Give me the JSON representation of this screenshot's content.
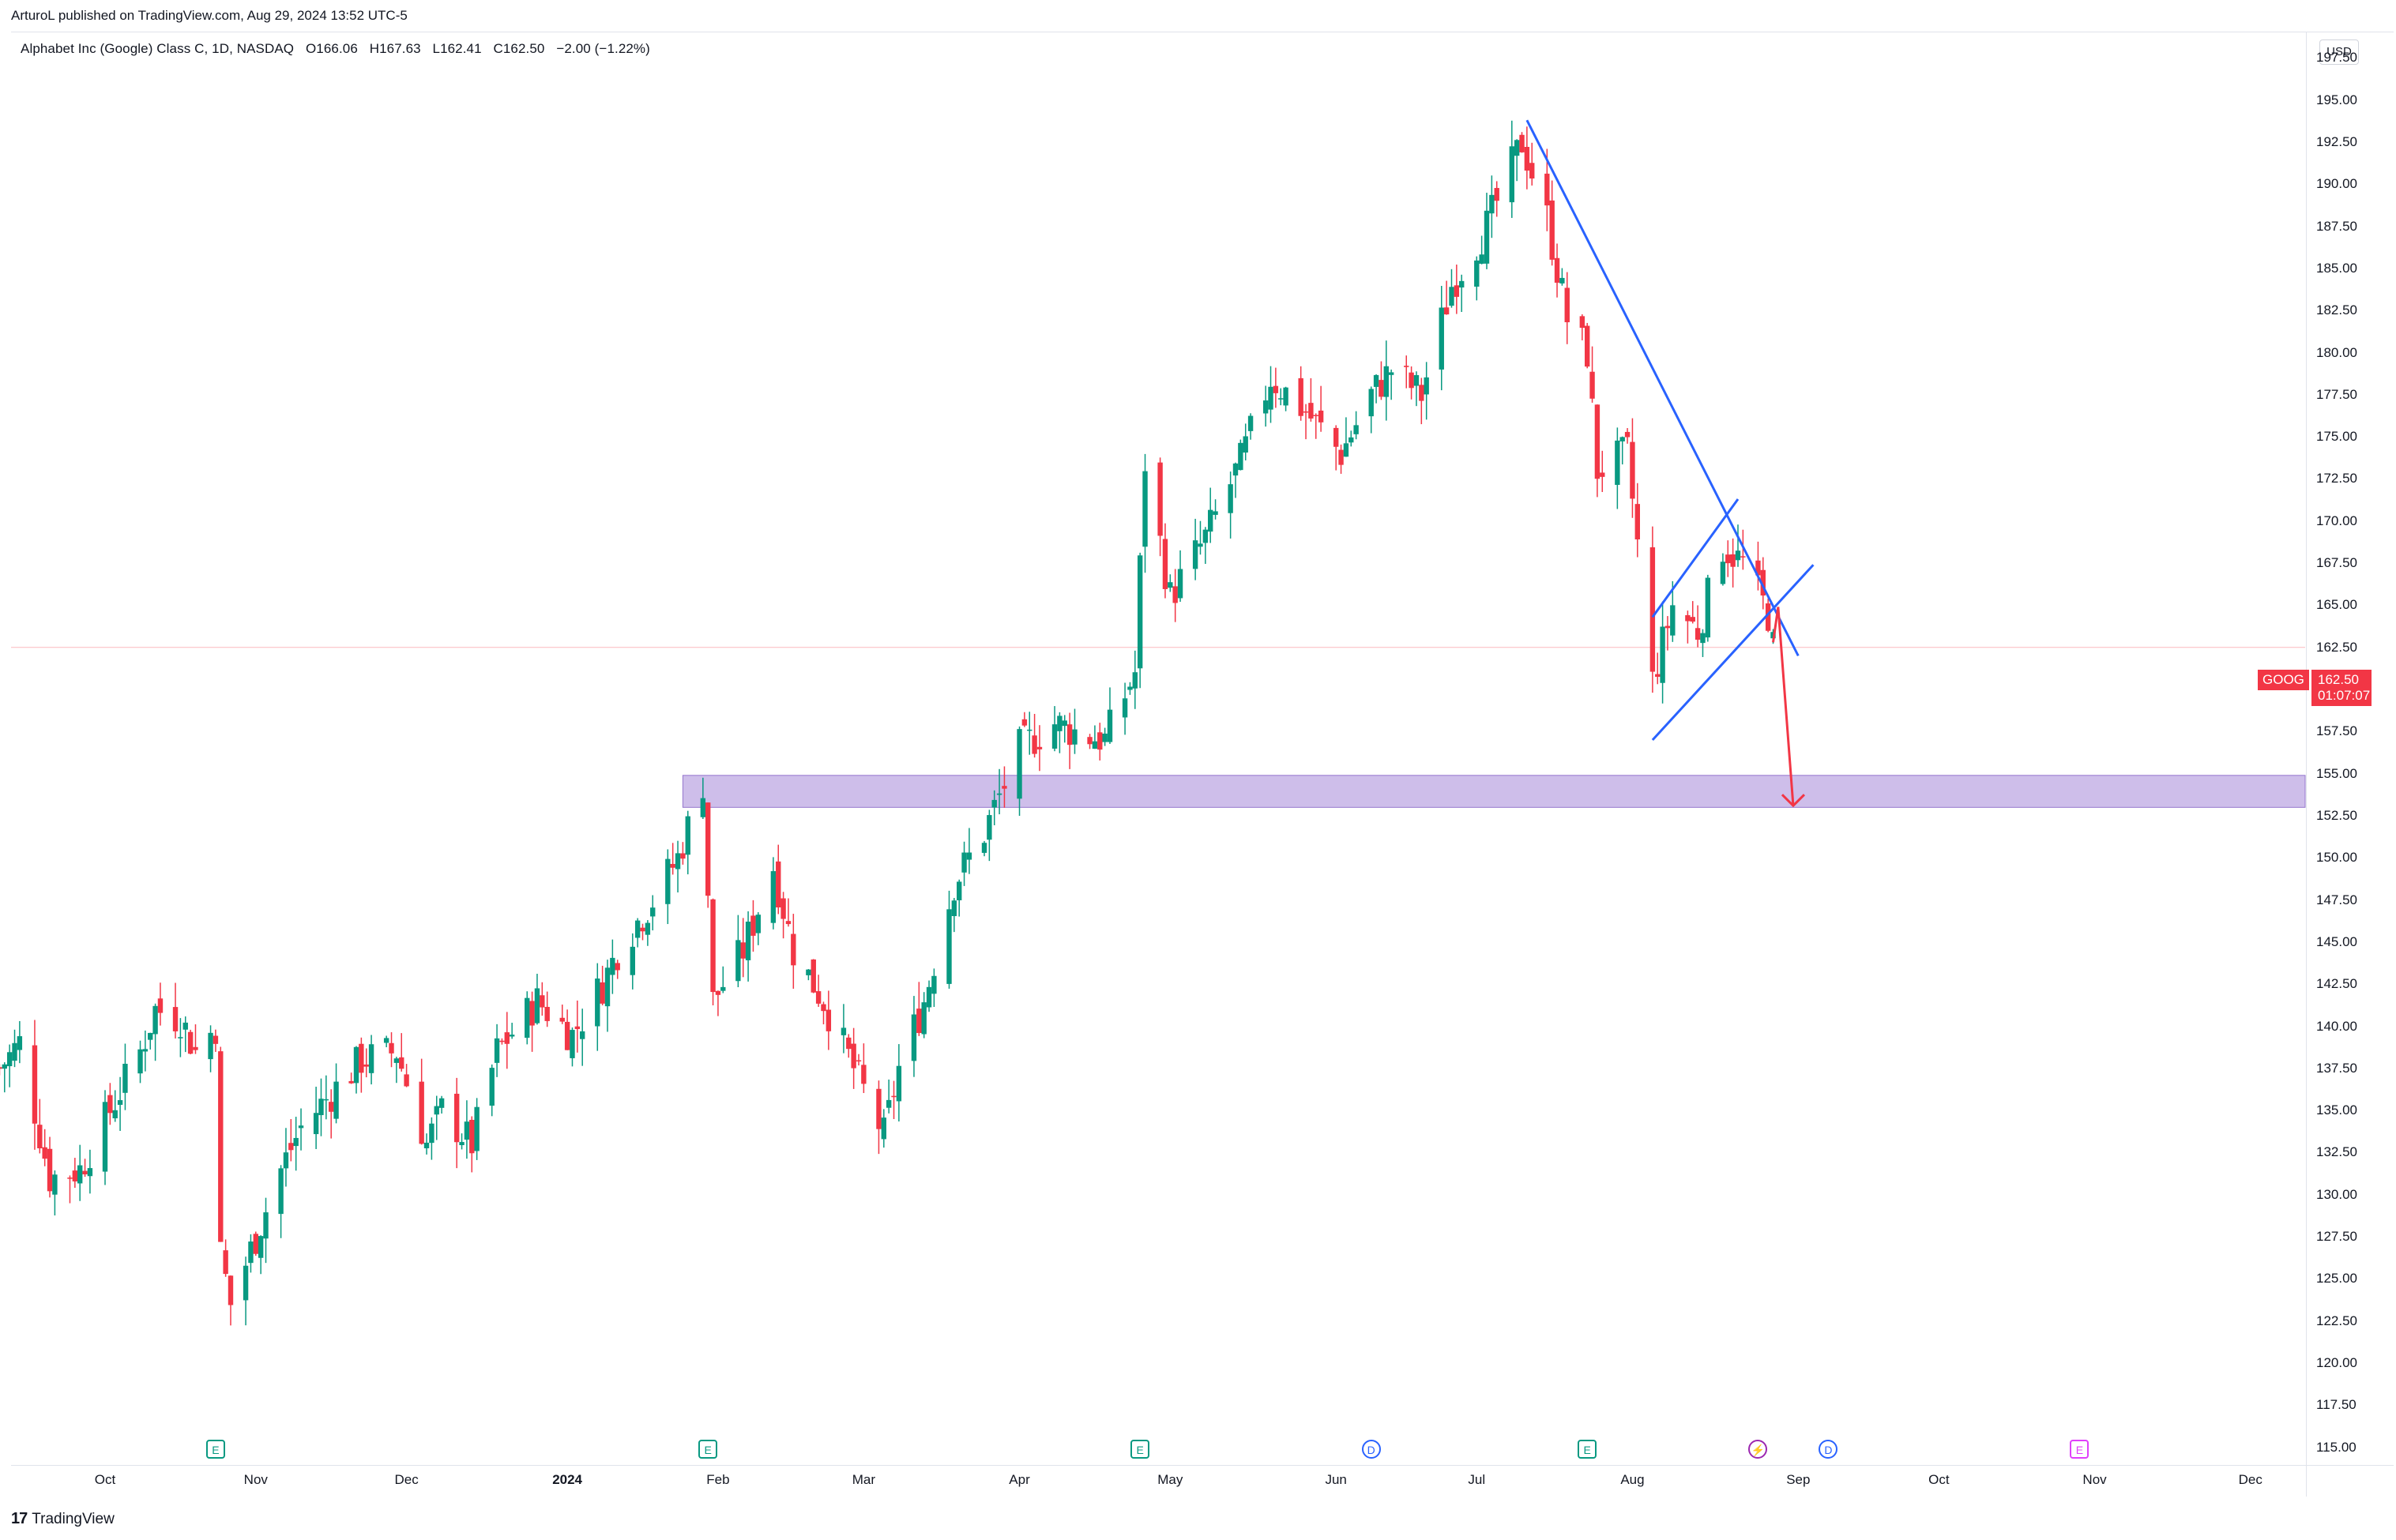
{
  "header": {
    "publisher": "ArturoL published on TradingView.com, Aug 29, 2024 13:52 UTC-5",
    "symbol_line": "Alphabet Inc (Google) Class C, 1D, NASDAQ",
    "open": "O166.06",
    "high": "H167.63",
    "low": "L162.41",
    "close": "C162.50",
    "change": "−2.00 (−1.22%)"
  },
  "currency": "USD",
  "price_tag": {
    "symbol": "GOOG",
    "price": "162.50",
    "countdown": "01:07:07"
  },
  "brand": {
    "mark": "17",
    "name": "TradingView"
  },
  "events": [
    {
      "type": "E",
      "date": "2023-10-24"
    },
    {
      "type": "E",
      "date": "2024-01-30"
    },
    {
      "type": "E",
      "date": "2024-04-25"
    },
    {
      "type": "D",
      "date": "2024-06-10"
    },
    {
      "type": "E",
      "date": "2024-07-23"
    },
    {
      "type": "S",
      "date": "2024-08-26"
    },
    {
      "type": "D",
      "date": "2024-09-09"
    },
    {
      "type": "E",
      "date": "2024-10-29"
    }
  ],
  "chart_data": {
    "type": "candlestick",
    "title": "Alphabet Inc (Google) Class C, 1D, NASDAQ",
    "ylim": [
      114,
      198.5
    ],
    "y_ticks": [
      "115.00",
      "117.50",
      "120.00",
      "122.50",
      "125.00",
      "127.50",
      "130.00",
      "132.50",
      "135.00",
      "137.50",
      "140.00",
      "142.50",
      "145.00",
      "147.50",
      "150.00",
      "152.50",
      "155.00",
      "157.50",
      "160.00",
      "162.50",
      "165.00",
      "167.50",
      "170.00",
      "172.50",
      "175.00",
      "177.50",
      "180.00",
      "182.50",
      "185.00",
      "187.50",
      "190.00",
      "192.50",
      "195.00",
      "197.50"
    ],
    "x_labels": [
      {
        "label": "Oct",
        "date": "2023-10-02"
      },
      {
        "label": "Nov",
        "date": "2023-11-01"
      },
      {
        "label": "Dec",
        "date": "2023-12-01"
      },
      {
        "label": "2024",
        "date": "2024-01-02",
        "year": true
      },
      {
        "label": "Feb",
        "date": "2024-02-01"
      },
      {
        "label": "Mar",
        "date": "2024-03-01"
      },
      {
        "label": "Apr",
        "date": "2024-04-01"
      },
      {
        "label": "May",
        "date": "2024-05-01"
      },
      {
        "label": "Jun",
        "date": "2024-06-03"
      },
      {
        "label": "Jul",
        "date": "2024-07-01"
      },
      {
        "label": "Aug",
        "date": "2024-08-01"
      },
      {
        "label": "Sep",
        "date": "2024-09-03"
      },
      {
        "label": "Oct",
        "date": "2024-10-01"
      },
      {
        "label": "Nov",
        "date": "2024-11-01"
      },
      {
        "label": "Dec",
        "date": "2024-12-02"
      }
    ],
    "closes": [
      {
        "date": "2023-09-11",
        "close": 137.5
      },
      {
        "date": "2023-09-15",
        "close": 139.0
      },
      {
        "date": "2023-09-21",
        "close": 131.0
      },
      {
        "date": "2023-09-27",
        "close": 131.5
      },
      {
        "date": "2023-10-03",
        "close": 135.0
      },
      {
        "date": "2023-10-09",
        "close": 138.5
      },
      {
        "date": "2023-10-12",
        "close": 141.0
      },
      {
        "date": "2023-10-17",
        "close": 140.5
      },
      {
        "date": "2023-10-20",
        "close": 138.5
      },
      {
        "date": "2023-10-24",
        "close": 140.0
      },
      {
        "date": "2023-10-25",
        "close": 126.5
      },
      {
        "date": "2023-10-27",
        "close": 123.5
      },
      {
        "date": "2023-11-01",
        "close": 127.5
      },
      {
        "date": "2023-11-06",
        "close": 131.5
      },
      {
        "date": "2023-11-10",
        "close": 134.0
      },
      {
        "date": "2023-11-16",
        "close": 136.0
      },
      {
        "date": "2023-11-22",
        "close": 138.0
      },
      {
        "date": "2023-11-29",
        "close": 138.5
      },
      {
        "date": "2023-12-05",
        "close": 133.0
      },
      {
        "date": "2023-12-08",
        "close": 135.0
      },
      {
        "date": "2023-12-14",
        "close": 133.0
      },
      {
        "date": "2023-12-19",
        "close": 138.5
      },
      {
        "date": "2023-12-27",
        "close": 141.5
      },
      {
        "date": "2024-01-03",
        "close": 139.5
      },
      {
        "date": "2024-01-09",
        "close": 142.5
      },
      {
        "date": "2024-01-12",
        "close": 144.5
      },
      {
        "date": "2024-01-19",
        "close": 147.5
      },
      {
        "date": "2024-01-24",
        "close": 150.0
      },
      {
        "date": "2024-01-29",
        "close": 154.5
      },
      {
        "date": "2024-01-31",
        "close": 141.5
      },
      {
        "date": "2024-02-06",
        "close": 144.5
      },
      {
        "date": "2024-02-12",
        "close": 149.5
      },
      {
        "date": "2024-02-16",
        "close": 144.5
      },
      {
        "date": "2024-02-22",
        "close": 141.5
      },
      {
        "date": "2024-02-28",
        "close": 137.5
      },
      {
        "date": "2024-03-05",
        "close": 133.5
      },
      {
        "date": "2024-03-08",
        "close": 137.5
      },
      {
        "date": "2024-03-13",
        "close": 141.5
      },
      {
        "date": "2024-03-19",
        "close": 148.5
      },
      {
        "date": "2024-03-25",
        "close": 151.5
      },
      {
        "date": "2024-04-01",
        "close": 156.5
      },
      {
        "date": "2024-04-08",
        "close": 158.0
      },
      {
        "date": "2024-04-12",
        "close": 157.5
      },
      {
        "date": "2024-04-18",
        "close": 157.0
      },
      {
        "date": "2024-04-24",
        "close": 161.0
      },
      {
        "date": "2024-04-26",
        "close": 173.5
      },
      {
        "date": "2024-05-01",
        "close": 165.5
      },
      {
        "date": "2024-05-08",
        "close": 169.0
      },
      {
        "date": "2024-05-15",
        "close": 173.5
      },
      {
        "date": "2024-05-21",
        "close": 178.5
      },
      {
        "date": "2024-05-28",
        "close": 176.5
      },
      {
        "date": "2024-06-04",
        "close": 174.0
      },
      {
        "date": "2024-06-10",
        "close": 177.5
      },
      {
        "date": "2024-06-14",
        "close": 179.0
      },
      {
        "date": "2024-06-20",
        "close": 177.5
      },
      {
        "date": "2024-06-26",
        "close": 184.0
      },
      {
        "date": "2024-07-03",
        "close": 187.5
      },
      {
        "date": "2024-07-10",
        "close": 192.5
      },
      {
        "date": "2024-07-15",
        "close": 188.0
      },
      {
        "date": "2024-07-19",
        "close": 182.0
      },
      {
        "date": "2024-07-23",
        "close": 180.0
      },
      {
        "date": "2024-07-25",
        "close": 173.0
      },
      {
        "date": "2024-07-31",
        "close": 174.0
      },
      {
        "date": "2024-08-05",
        "close": 160.5
      },
      {
        "date": "2024-08-09",
        "close": 165.0
      },
      {
        "date": "2024-08-14",
        "close": 163.5
      },
      {
        "date": "2024-08-19",
        "close": 168.5
      },
      {
        "date": "2024-08-23",
        "close": 167.5
      },
      {
        "date": "2024-08-28",
        "close": 164.5
      },
      {
        "date": "2024-08-29",
        "close": 162.5
      }
    ],
    "drawings": {
      "zone": {
        "from": "2024-01-25",
        "to": "2024-12-31",
        "ymin": 153.0,
        "ymax": 154.9,
        "color": "#c5b3e6"
      },
      "trendline": {
        "start": {
          "date": "2024-07-11",
          "price": 193.8
        },
        "end": {
          "date": "2024-09-03",
          "price": 162.0
        },
        "color": "#2962ff"
      },
      "channel_upper": {
        "start": {
          "date": "2024-08-05",
          "price": 164.3
        },
        "end": {
          "date": "2024-08-22",
          "price": 171.3
        },
        "color": "#2962ff"
      },
      "channel_lower": {
        "start": {
          "date": "2024-08-05",
          "price": 157.0
        },
        "end": {
          "date": "2024-09-06",
          "price": 167.4
        },
        "color": "#2962ff"
      },
      "arrow": {
        "points": [
          {
            "date": "2024-08-29",
            "price": 162.8
          },
          {
            "date": "2024-08-30",
            "price": 164.9
          },
          {
            "date": "2024-09-02",
            "price": 153.1
          }
        ],
        "color": "#f23645"
      }
    },
    "last_price_line": 162.5
  }
}
